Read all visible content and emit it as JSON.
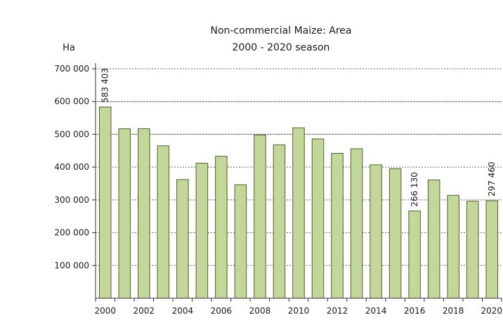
{
  "chart_data": {
    "type": "bar",
    "title": "Non-commercial Maize: Area",
    "subtitle": "2000 - 2020 season",
    "ylabel": "Ha",
    "xlabel": "",
    "categories": [
      "2000",
      "2001",
      "2002",
      "2003",
      "2004",
      "2005",
      "2006",
      "2007",
      "2008",
      "2009",
      "2010",
      "2011",
      "2012",
      "2013",
      "2014",
      "2015",
      "2016",
      "2017",
      "2018",
      "2019",
      "2020"
    ],
    "values": [
      583403,
      517000,
      517000,
      465000,
      362000,
      412000,
      433000,
      346000,
      498000,
      468000,
      520000,
      486000,
      442000,
      456000,
      407000,
      395000,
      266130,
      361000,
      314000,
      296000,
      297460
    ],
    "ylim": [
      0,
      700000
    ],
    "yticks": [
      100000,
      200000,
      300000,
      400000,
      500000,
      600000,
      700000
    ],
    "ytick_labels": [
      "100 000",
      "200 000",
      "300 000",
      "400 000",
      "500 000",
      "600 000",
      "700 000"
    ],
    "xtick_labels": [
      "2000",
      "2002",
      "2004",
      "2006",
      "2008",
      "2010",
      "2012",
      "2014",
      "2016",
      "2018",
      "2020"
    ],
    "data_labels": [
      {
        "category": "2000",
        "text": "583 403"
      },
      {
        "category": "2016",
        "text": "266 130"
      },
      {
        "category": "2020",
        "text": "297 460"
      }
    ],
    "grid": true,
    "legend": "none",
    "colors": {
      "bar_fill": "#c4d79b",
      "bar_stroke": "#4f6228",
      "grid": "#666666",
      "axis": "#333333"
    }
  }
}
